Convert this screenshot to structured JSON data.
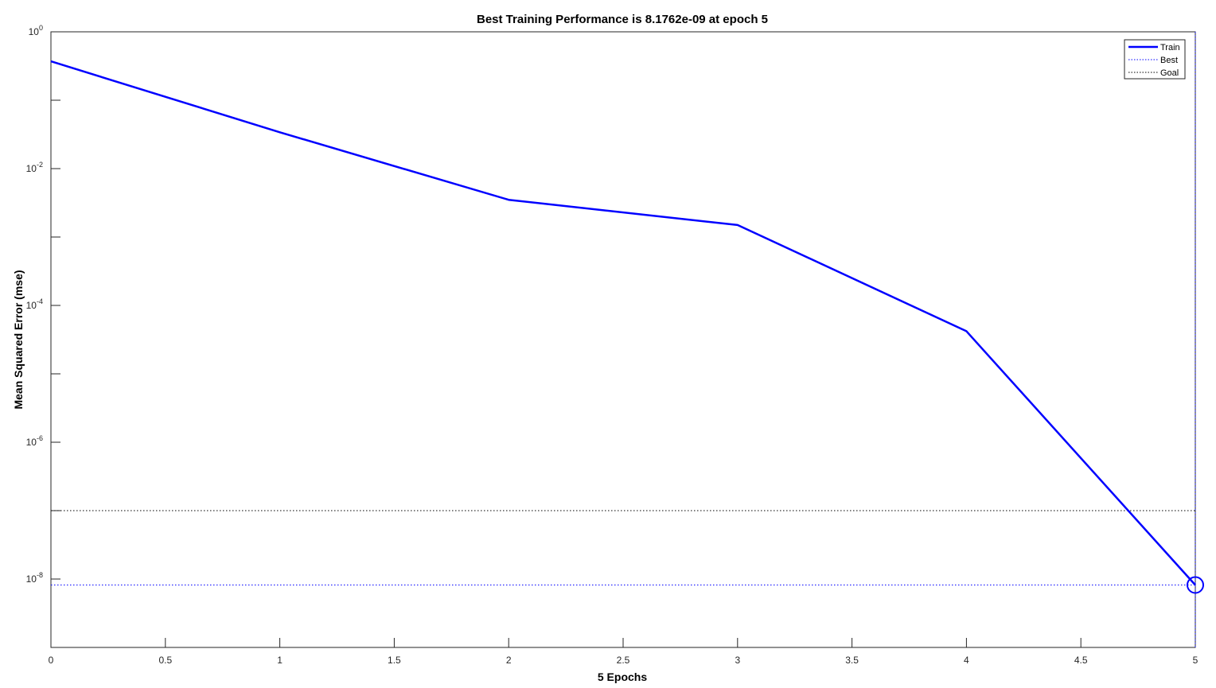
{
  "chart_data": {
    "type": "line",
    "title": "Best Training Performance is 8.1762e-09 at epoch 5",
    "xlabel": "5 Epochs",
    "ylabel": "Mean Squared Error  (mse)",
    "xlim": [
      0,
      5
    ],
    "ylim_exponents": [
      -9,
      0
    ],
    "yscale": "log",
    "x_ticks": [
      "0",
      "0.5",
      "1",
      "1.5",
      "2",
      "2.5",
      "3",
      "3.5",
      "4",
      "4.5",
      "5"
    ],
    "y_ticks": [
      {
        "base": "10",
        "exp": "0"
      },
      {
        "base": "10",
        "exp": "-2"
      },
      {
        "base": "10",
        "exp": "-4"
      },
      {
        "base": "10",
        "exp": "-6"
      },
      {
        "base": "10",
        "exp": "-8"
      }
    ],
    "grid": false,
    "legend_position": "top-right",
    "legend": [
      {
        "label": "Train",
        "style": "solid"
      },
      {
        "label": "Best",
        "style": "dotted"
      },
      {
        "label": "Goal",
        "style": "dotted"
      }
    ],
    "series": [
      {
        "name": "Train",
        "color": "#0000ff",
        "x": [
          0,
          1,
          2,
          3,
          4,
          5
        ],
        "y": [
          0.37,
          0.034,
          0.0035,
          0.0015,
          4.2e-05,
          8.1762e-09
        ]
      }
    ],
    "best": {
      "epoch": 5,
      "value": 8.1762e-09
    },
    "goal": {
      "value": 1e-07
    }
  }
}
